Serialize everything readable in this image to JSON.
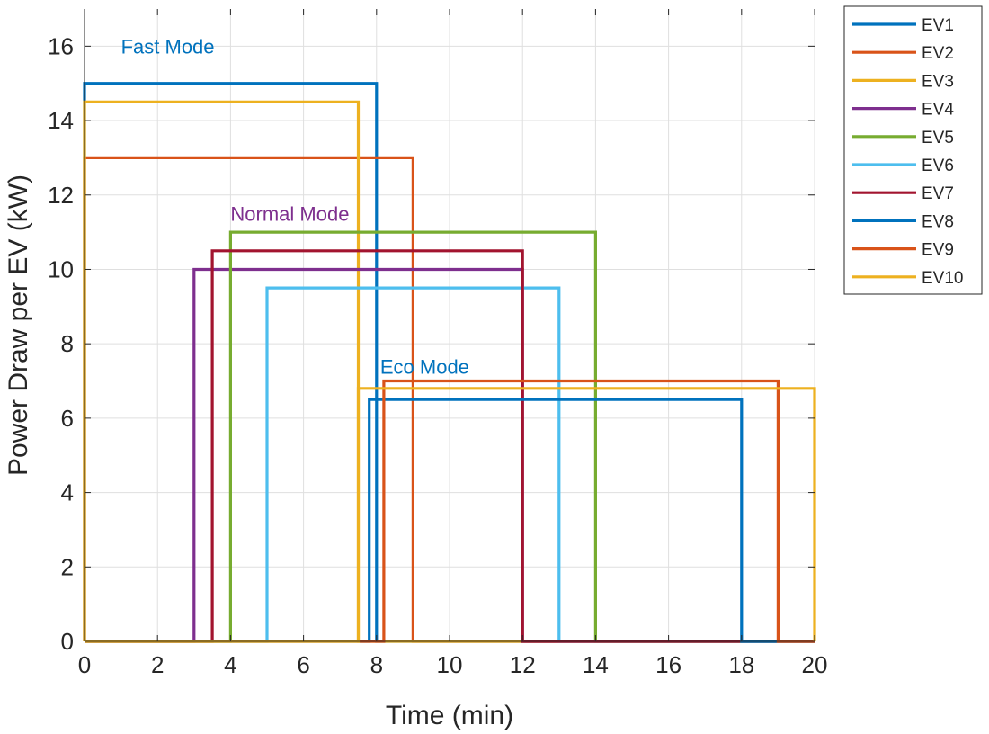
{
  "chart_data": {
    "type": "line",
    "title": "",
    "xlabel": "Time (min)",
    "ylabel": "Power Draw per EV (kW)",
    "xlim": [
      0,
      20
    ],
    "ylim": [
      0,
      17
    ],
    "xticks": [
      0,
      2,
      4,
      6,
      8,
      10,
      12,
      14,
      16,
      18,
      20
    ],
    "yticks": [
      0,
      2,
      4,
      6,
      8,
      10,
      12,
      14,
      16
    ],
    "grid": true,
    "legend_position": "outside-top-right",
    "annotations": [
      {
        "text": "Fast Mode",
        "x": 1.0,
        "y": 15.8,
        "color": "#0072BD"
      },
      {
        "text": "Normal Mode",
        "x": 4.0,
        "y": 11.3,
        "color": "#7E2F8E"
      },
      {
        "text": "Eco Mode",
        "x": 8.1,
        "y": 7.2,
        "color": "#0072BD"
      }
    ],
    "series": [
      {
        "name": "EV1",
        "color": "#0072BD",
        "start": 0,
        "end": 8.0,
        "power": 15.0
      },
      {
        "name": "EV2",
        "color": "#D95319",
        "start": 0,
        "end": 9.0,
        "power": 13.0
      },
      {
        "name": "EV3",
        "color": "#EDB120",
        "start": 0,
        "end": 7.5,
        "power": 14.5
      },
      {
        "name": "EV4",
        "color": "#7E2F8E",
        "start": 3.0,
        "end": 12.0,
        "power": 10.0
      },
      {
        "name": "EV5",
        "color": "#77AC30",
        "start": 4.0,
        "end": 14.0,
        "power": 11.0
      },
      {
        "name": "EV6",
        "color": "#4DBEEE",
        "start": 5.0,
        "end": 13.0,
        "power": 9.5
      },
      {
        "name": "EV7",
        "color": "#A2142F",
        "start": 3.5,
        "end": 12.0,
        "power": 10.5
      },
      {
        "name": "EV8",
        "color": "#0072BD",
        "start": 7.8,
        "end": 18.0,
        "power": 6.5
      },
      {
        "name": "EV9",
        "color": "#D95319",
        "start": 8.2,
        "end": 19.0,
        "power": 7.0
      },
      {
        "name": "EV10",
        "color": "#EDB120",
        "start": 7.5,
        "end": 20.0,
        "power": 6.8
      }
    ]
  }
}
